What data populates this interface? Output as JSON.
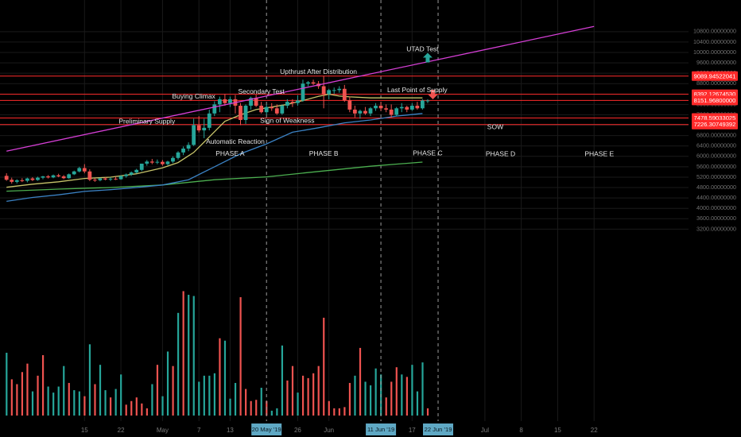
{
  "chart_data": {
    "type": "candlestick",
    "title": "",
    "ylim": [
      3000,
      11000
    ],
    "y_ticks": [
      "10800.00000000",
      "10400.00000000",
      "10000.00000000",
      "9600.00000000",
      "9200.00000000",
      "8800.00000000",
      "8400.00000000",
      "8000.00000000",
      "7600.00000000",
      "7200.00000000",
      "6800.00000000",
      "6400.00000000",
      "6000.00000000",
      "5600.00000000",
      "5200.00000000",
      "4800.00000000",
      "4400.00000000",
      "4000.00000000",
      "3600.00000000",
      "3200.00000000"
    ],
    "x_ticks": [
      {
        "label": "15",
        "day": 15
      },
      {
        "label": "22",
        "day": 22
      },
      {
        "label": "May",
        "day": 30
      },
      {
        "label": "7",
        "day": 37
      },
      {
        "label": "13",
        "day": 43
      },
      {
        "label": "26",
        "day": 56
      },
      {
        "label": "Jun",
        "day": 62
      },
      {
        "label": "17",
        "day": 78
      },
      {
        "label": "Jul",
        "day": 92
      },
      {
        "label": "8",
        "day": 99
      },
      {
        "label": "15",
        "day": 106
      },
      {
        "label": "22",
        "day": 113
      }
    ],
    "x_highlights": [
      {
        "label": "20 May '19",
        "day": 50
      },
      {
        "label": "11 Jun '19",
        "day": 72
      },
      {
        "label": "22 Jun '19",
        "day": 83
      }
    ],
    "horizontal_levels": [
      {
        "label": "9089.94522041",
        "value": 9089.945
      },
      {
        "label": "8392.12674530",
        "value": 8392.127
      },
      {
        "label": "8151.96800000",
        "value": 8151.968
      },
      {
        "label": "7478.59033025",
        "value": 7478.59
      },
      {
        "label": "7226.30749392",
        "value": 7226.307
      }
    ],
    "annotations": [
      {
        "text": "UTAD Test",
        "day": 80,
        "value": 10120
      },
      {
        "text": "Upthrust After Distribution",
        "day": 60,
        "value": 9240
      },
      {
        "text": "Last Point of Supply",
        "day": 79,
        "value": 8540
      },
      {
        "text": "Secondary Test",
        "day": 49,
        "value": 8480
      },
      {
        "text": "Buying Climax",
        "day": 36,
        "value": 8300
      },
      {
        "text": "Preliminary Supply",
        "day": 27,
        "value": 7330
      },
      {
        "text": "Sign of Weakness",
        "day": 54,
        "value": 7360
      },
      {
        "text": "Automatic Reaction",
        "day": 44,
        "value": 6550
      },
      {
        "text": "SOW",
        "day": 94,
        "value": 7120
      },
      {
        "text": "PHASE A",
        "day": 43,
        "value": 6100
      },
      {
        "text": "PHASE B",
        "day": 61,
        "value": 6100
      },
      {
        "text": "PHASE C",
        "day": 81,
        "value": 6110
      },
      {
        "text": "PHASE D",
        "day": 95,
        "value": 6080
      },
      {
        "text": "PHASE E",
        "day": 114,
        "value": 6080
      }
    ],
    "candles": [
      [
        0,
        5250,
        5350,
        5060,
        5100
      ],
      [
        1,
        5100,
        5180,
        4950,
        5020
      ],
      [
        2,
        5020,
        5120,
        4960,
        5080
      ],
      [
        3,
        5080,
        5160,
        5010,
        5060
      ],
      [
        4,
        5060,
        5180,
        5000,
        5150
      ],
      [
        5,
        5150,
        5200,
        5050,
        5090
      ],
      [
        6,
        5090,
        5220,
        5060,
        5180
      ],
      [
        7,
        5180,
        5250,
        5120,
        5230
      ],
      [
        8,
        5230,
        5280,
        5150,
        5190
      ],
      [
        9,
        5190,
        5300,
        5160,
        5270
      ],
      [
        10,
        5270,
        5330,
        5200,
        5230
      ],
      [
        11,
        5230,
        5280,
        5120,
        5160
      ],
      [
        12,
        5160,
        5340,
        5140,
        5310
      ],
      [
        13,
        5310,
        5450,
        5280,
        5420
      ],
      [
        14,
        5420,
        5600,
        5380,
        5550
      ],
      [
        15,
        5550,
        5700,
        5350,
        5420
      ],
      [
        16,
        5420,
        5500,
        5050,
        5100
      ],
      [
        17,
        5100,
        5160,
        5020,
        5080
      ],
      [
        18,
        5080,
        5180,
        5040,
        5150
      ],
      [
        19,
        5150,
        5200,
        5080,
        5110
      ],
      [
        20,
        5110,
        5190,
        5050,
        5140
      ],
      [
        21,
        5140,
        5220,
        5090,
        5120
      ],
      [
        22,
        5120,
        5270,
        5100,
        5240
      ],
      [
        23,
        5240,
        5340,
        5180,
        5300
      ],
      [
        24,
        5300,
        5420,
        5250,
        5380
      ],
      [
        25,
        5380,
        5520,
        5340,
        5480
      ],
      [
        26,
        5480,
        5650,
        5430,
        5720
      ],
      [
        27,
        5720,
        5860,
        5640,
        5800
      ],
      [
        28,
        5800,
        5900,
        5700,
        5760
      ],
      [
        29,
        5760,
        5880,
        5700,
        5790
      ],
      [
        30,
        5790,
        5860,
        5640,
        5700
      ],
      [
        31,
        5700,
        5830,
        5660,
        5800
      ],
      [
        32,
        5800,
        6000,
        5740,
        5940
      ],
      [
        33,
        5940,
        6200,
        5880,
        6150
      ],
      [
        34,
        6150,
        6380,
        6050,
        6300
      ],
      [
        35,
        6300,
        6540,
        6200,
        6440
      ],
      [
        36,
        6440,
        7450,
        6400,
        7200
      ],
      [
        37,
        7200,
        7550,
        6920,
        7000
      ],
      [
        38,
        7000,
        7450,
        6700,
        7100
      ],
      [
        39,
        7100,
        7800,
        7000,
        7650
      ],
      [
        40,
        7650,
        8120,
        7550,
        8000
      ],
      [
        41,
        8000,
        8300,
        7700,
        8200
      ],
      [
        42,
        8200,
        8400,
        7950,
        8050
      ],
      [
        43,
        8050,
        8300,
        7900,
        8200
      ],
      [
        44,
        8200,
        8360,
        7650,
        7950
      ],
      [
        45,
        7950,
        8050,
        7200,
        7400
      ],
      [
        46,
        7400,
        8000,
        7250,
        7950
      ],
      [
        47,
        7950,
        8300,
        7800,
        8250
      ],
      [
        48,
        8250,
        8370,
        7900,
        7950
      ],
      [
        49,
        7950,
        8100,
        7650,
        7700
      ],
      [
        50,
        7700,
        8000,
        7600,
        7900
      ],
      [
        51,
        7900,
        8050,
        7750,
        7850
      ],
      [
        52,
        7850,
        8000,
        7600,
        7650
      ],
      [
        53,
        7650,
        8000,
        7600,
        7950
      ],
      [
        54,
        7950,
        8200,
        7850,
        8100
      ],
      [
        55,
        8100,
        8200,
        7900,
        8050
      ],
      [
        56,
        8050,
        8350,
        7950,
        8150
      ],
      [
        57,
        8150,
        8950,
        8100,
        8800
      ],
      [
        58,
        8800,
        8900,
        8700,
        8850
      ],
      [
        59,
        8850,
        8950,
        8750,
        8800
      ],
      [
        60,
        8800,
        8900,
        8600,
        8700
      ],
      [
        61,
        8700,
        9090,
        7850,
        8400
      ],
      [
        62,
        8400,
        8600,
        8200,
        8550
      ],
      [
        63,
        8550,
        8650,
        8400,
        8550
      ],
      [
        64,
        8550,
        8700,
        8450,
        8600
      ],
      [
        65,
        8600,
        8750,
        8100,
        8150
      ],
      [
        66,
        8150,
        8300,
        7700,
        7800
      ],
      [
        67,
        7800,
        7950,
        7500,
        7650
      ],
      [
        68,
        7650,
        7800,
        7450,
        7750
      ],
      [
        69,
        7750,
        7900,
        7600,
        7650
      ],
      [
        70,
        7650,
        7900,
        7550,
        7850
      ],
      [
        71,
        7850,
        8050,
        7750,
        7950
      ],
      [
        72,
        7950,
        8100,
        7750,
        7850
      ],
      [
        73,
        7850,
        8000,
        7700,
        7800
      ],
      [
        74,
        7800,
        8000,
        7500,
        7600
      ],
      [
        75,
        7600,
        7900,
        7550,
        7850
      ],
      [
        76,
        7850,
        8050,
        7700,
        7900
      ],
      [
        77,
        7900,
        7950,
        7700,
        7800
      ],
      [
        78,
        7800,
        8050,
        7750,
        7950
      ],
      [
        79,
        7950,
        8100,
        7800,
        7850
      ],
      [
        80,
        7850,
        8200,
        7800,
        8150
      ],
      [
        81,
        8150,
        8200,
        8050,
        8150
      ]
    ],
    "volume": [
      [
        0,
        2600,
        "up"
      ],
      [
        1,
        1500,
        "down"
      ],
      [
        2,
        1300,
        "down"
      ],
      [
        3,
        1800,
        "down"
      ],
      [
        4,
        2150,
        "down"
      ],
      [
        5,
        1000,
        "up"
      ],
      [
        6,
        1650,
        "down"
      ],
      [
        7,
        2500,
        "down"
      ],
      [
        8,
        1200,
        "up"
      ],
      [
        9,
        950,
        "up"
      ],
      [
        10,
        1200,
        "up"
      ],
      [
        11,
        2050,
        "up"
      ],
      [
        12,
        1350,
        "down"
      ],
      [
        13,
        1050,
        "up"
      ],
      [
        14,
        1000,
        "up"
      ],
      [
        15,
        800,
        "down"
      ],
      [
        16,
        2950,
        "up"
      ],
      [
        17,
        1300,
        "down"
      ],
      [
        18,
        2100,
        "up"
      ],
      [
        19,
        1050,
        "up"
      ],
      [
        20,
        750,
        "down"
      ],
      [
        21,
        1100,
        "up"
      ],
      [
        22,
        1700,
        "up"
      ],
      [
        23,
        450,
        "down"
      ],
      [
        24,
        600,
        "down"
      ],
      [
        25,
        750,
        "down"
      ],
      [
        26,
        500,
        "down"
      ],
      [
        27,
        300,
        "down"
      ],
      [
        28,
        1300,
        "up"
      ],
      [
        29,
        2100,
        "down"
      ],
      [
        30,
        800,
        "up"
      ],
      [
        31,
        2650,
        "up"
      ],
      [
        32,
        2050,
        "down"
      ],
      [
        33,
        4250,
        "up"
      ],
      [
        34,
        5150,
        "down"
      ],
      [
        35,
        5000,
        "up"
      ],
      [
        36,
        4950,
        "up"
      ],
      [
        37,
        1400,
        "up"
      ],
      [
        38,
        1650,
        "up"
      ],
      [
        39,
        1650,
        "up"
      ],
      [
        40,
        1750,
        "up"
      ],
      [
        41,
        3200,
        "down"
      ],
      [
        42,
        3100,
        "up"
      ],
      [
        43,
        700,
        "up"
      ],
      [
        44,
        1350,
        "up"
      ],
      [
        45,
        4900,
        "down"
      ],
      [
        46,
        1100,
        "down"
      ],
      [
        47,
        600,
        "down"
      ],
      [
        48,
        650,
        "down"
      ],
      [
        49,
        1150,
        "up"
      ],
      [
        50,
        600,
        "down"
      ],
      [
        51,
        200,
        "up"
      ],
      [
        52,
        300,
        "up"
      ],
      [
        53,
        2900,
        "up"
      ],
      [
        54,
        1450,
        "down"
      ],
      [
        55,
        2050,
        "down"
      ],
      [
        56,
        950,
        "up"
      ],
      [
        57,
        1650,
        "down"
      ],
      [
        58,
        1550,
        "down"
      ],
      [
        59,
        1750,
        "down"
      ],
      [
        60,
        2050,
        "down"
      ],
      [
        61,
        4050,
        "down"
      ],
      [
        62,
        600,
        "down"
      ],
      [
        63,
        300,
        "down"
      ],
      [
        64,
        300,
        "down"
      ],
      [
        65,
        350,
        "down"
      ],
      [
        66,
        1350,
        "down"
      ],
      [
        67,
        1650,
        "up"
      ],
      [
        68,
        2800,
        "down"
      ],
      [
        69,
        1400,
        "up"
      ],
      [
        70,
        1250,
        "up"
      ],
      [
        71,
        1950,
        "up"
      ],
      [
        72,
        1700,
        "up"
      ],
      [
        73,
        750,
        "down"
      ],
      [
        74,
        1400,
        "down"
      ],
      [
        75,
        2000,
        "down"
      ],
      [
        76,
        1700,
        "up"
      ],
      [
        77,
        1600,
        "down"
      ],
      [
        78,
        2100,
        "up"
      ],
      [
        79,
        1000,
        "up"
      ],
      [
        80,
        2200,
        "up"
      ],
      [
        81,
        300,
        "down"
      ]
    ],
    "ma_short": [
      [
        0,
        4810
      ],
      [
        5,
        4930
      ],
      [
        10,
        5020
      ],
      [
        15,
        5150
      ],
      [
        20,
        5200
      ],
      [
        25,
        5330
      ],
      [
        30,
        5560
      ],
      [
        33,
        5760
      ],
      [
        36,
        6150
      ],
      [
        39,
        6750
      ],
      [
        42,
        7350
      ],
      [
        45,
        7600
      ],
      [
        48,
        7800
      ],
      [
        51,
        7900
      ],
      [
        54,
        8000
      ],
      [
        57,
        8150
      ],
      [
        60,
        8310
      ],
      [
        62,
        8390
      ],
      [
        64,
        8320
      ],
      [
        66,
        8290
      ],
      [
        70,
        8250
      ],
      [
        75,
        8250
      ],
      [
        80,
        8250
      ]
    ],
    "ma_mid": [
      [
        0,
        4270
      ],
      [
        5,
        4420
      ],
      [
        10,
        4520
      ],
      [
        15,
        4650
      ],
      [
        20,
        4720
      ],
      [
        25,
        4800
      ],
      [
        30,
        4900
      ],
      [
        35,
        5100
      ],
      [
        40,
        5600
      ],
      [
        45,
        6100
      ],
      [
        50,
        6480
      ],
      [
        55,
        6930
      ],
      [
        60,
        7100
      ],
      [
        65,
        7290
      ],
      [
        70,
        7400
      ],
      [
        75,
        7550
      ],
      [
        80,
        7650
      ]
    ],
    "ma_long": [
      [
        0,
        4660
      ],
      [
        10,
        4740
      ],
      [
        20,
        4800
      ],
      [
        30,
        4900
      ],
      [
        40,
        5100
      ],
      [
        50,
        5210
      ],
      [
        60,
        5420
      ],
      [
        70,
        5620
      ],
      [
        80,
        5780
      ]
    ],
    "trendline": [
      [
        0,
        6200
      ],
      [
        113,
        11000
      ]
    ],
    "arrows": [
      {
        "type": "up",
        "day": 81,
        "value": 9800,
        "color": "#26a69a"
      },
      {
        "type": "down",
        "day": 82,
        "value": 8380,
        "color": "#ef5350"
      }
    ],
    "colors": {
      "up": "#26a69a",
      "down": "#ef5350",
      "ma_short": "#c8c46a",
      "ma_mid": "#3b82c4",
      "ma_long": "#4caf50",
      "trendline": "#d63fd6",
      "level": "#ff2a2a",
      "grid": "#1a1a1a"
    }
  }
}
